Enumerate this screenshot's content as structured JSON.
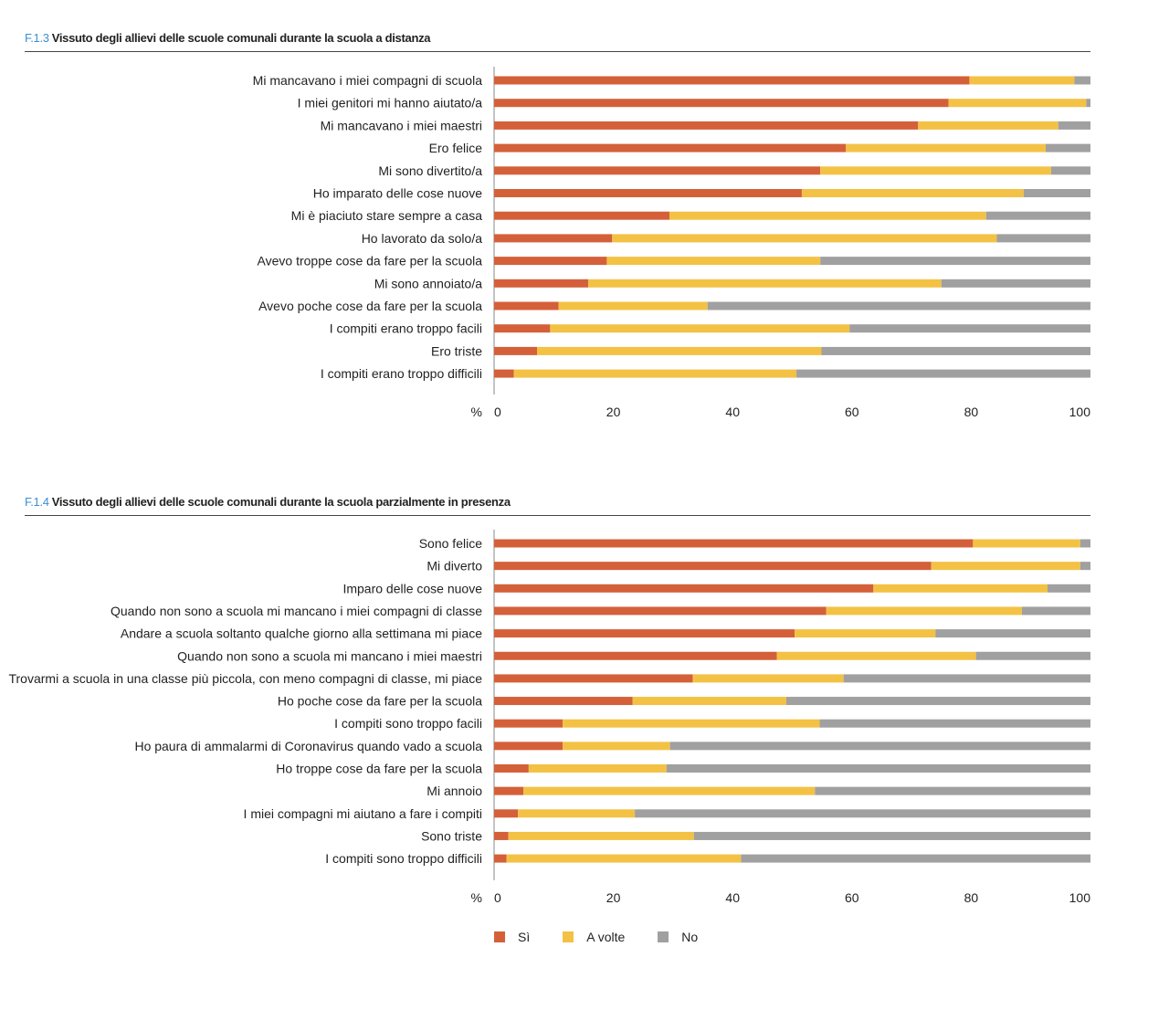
{
  "colors": {
    "si": "#d4603a",
    "a_volte": "#f3c245",
    "no": "#a0a0a0",
    "axis": "#888888"
  },
  "legend": [
    {
      "key": "si",
      "label": "Sì"
    },
    {
      "key": "a_volte",
      "label": "A volte"
    },
    {
      "key": "no",
      "label": "No"
    }
  ],
  "chart_data": [
    {
      "type": "bar",
      "orientation": "horizontal",
      "stacked": true,
      "code": "F.1.3",
      "title": "Vissuto degli allievi delle scuole comunali durante la scuola a distanza",
      "unit_label": "%",
      "xlim": [
        0,
        100
      ],
      "xticks": [
        "0",
        "20",
        "40",
        "60",
        "80",
        "100"
      ],
      "categories": [
        "Mi mancavano i miei compagni di scuola",
        "I miei genitori mi hanno aiutato/a",
        "Mi mancavano i miei maestri",
        "Ero felice",
        "Mi sono divertito/a",
        "Ho imparato delle cose nuove",
        "Mi è piaciuto stare sempre a casa",
        "Ho lavorato da solo/a",
        "Avevo troppe cose da fare per la scuola",
        "Mi sono annoiato/a",
        "Avevo poche cose da fare per la scuola",
        "I compiti erano troppo facili",
        "Ero triste",
        "I compiti erano troppo difficili"
      ],
      "series": [
        {
          "name": "Sì",
          "key": "si",
          "values": [
            79.7,
            76.2,
            71.1,
            59.0,
            54.7,
            51.6,
            29.4,
            19.8,
            18.9,
            15.8,
            10.8,
            9.4,
            7.2,
            3.3
          ]
        },
        {
          "name": "A volte",
          "key": "a_volte",
          "values": [
            17.6,
            23.1,
            23.5,
            33.5,
            38.7,
            37.2,
            53.1,
            64.5,
            35.8,
            59.2,
            25.0,
            50.2,
            47.7,
            47.4
          ]
        },
        {
          "name": "No",
          "key": "no",
          "values": [
            2.7,
            0.7,
            5.4,
            7.5,
            6.6,
            11.2,
            17.5,
            15.7,
            45.3,
            25.0,
            64.2,
            40.4,
            45.1,
            49.3
          ]
        }
      ]
    },
    {
      "type": "bar",
      "orientation": "horizontal",
      "stacked": true,
      "code": "F.1.4",
      "title": "Vissuto degli allievi delle scuole comunali durante la scuola parzialmente in presenza",
      "unit_label": "%",
      "xlim": [
        0,
        100
      ],
      "xticks": [
        "0",
        "20",
        "40",
        "60",
        "80",
        "100"
      ],
      "categories": [
        "Sono felice",
        "Mi diverto",
        "Imparo delle cose nuove",
        "Quando non sono a scuola mi mancano i miei compagni di classe",
        "Andare a scuola soltanto qualche giorno alla settimana mi piace",
        "Quando non sono a scuola mi mancano i miei maestri",
        "Trovarmi a scuola in una classe più piccola, con meno compagni di classe, mi piace",
        "Ho poche cose da fare per la scuola",
        "I compiti sono troppo facili",
        "Ho paura di ammalarmi di Coronavirus quando vado a scuola",
        "Ho troppe cose da fare per la scuola",
        "Mi annoio",
        "I miei compagni mi aiutano a fare i compiti",
        "Sono triste",
        "I compiti sono troppo difficili"
      ],
      "series": [
        {
          "name": "Sì",
          "key": "si",
          "values": [
            80.3,
            73.3,
            63.6,
            55.7,
            50.4,
            47.4,
            33.3,
            23.2,
            11.5,
            11.5,
            5.8,
            4.9,
            4.0,
            2.4,
            2.1
          ]
        },
        {
          "name": "A volte",
          "key": "a_volte",
          "values": [
            18.0,
            25.0,
            29.2,
            32.8,
            23.6,
            33.4,
            25.3,
            25.8,
            43.1,
            18.0,
            23.1,
            48.9,
            19.6,
            31.1,
            39.3
          ]
        },
        {
          "name": "No",
          "key": "no",
          "values": [
            1.7,
            1.7,
            7.2,
            11.5,
            26.0,
            19.2,
            41.4,
            51.0,
            45.4,
            70.5,
            71.1,
            46.2,
            76.4,
            66.5,
            58.6
          ]
        }
      ]
    }
  ]
}
